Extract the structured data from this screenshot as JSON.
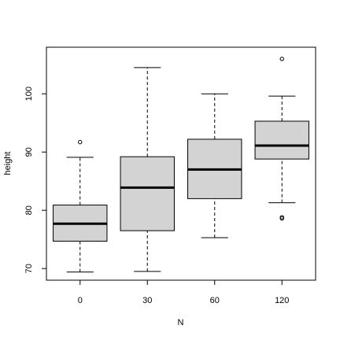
{
  "chart_data": {
    "type": "box",
    "xlabel": "N",
    "ylabel": "height",
    "ylim": [
      68,
      108
    ],
    "yticks": [
      70,
      80,
      90,
      100
    ],
    "categories": [
      "0",
      "30",
      "60",
      "120"
    ],
    "boxes": [
      {
        "category": "0",
        "whisker_low": 69.4,
        "q1": 74.7,
        "median": 77.7,
        "q3": 80.9,
        "whisker_high": 89.1,
        "outliers": [
          91.7
        ]
      },
      {
        "category": "30",
        "whisker_low": 69.5,
        "q1": 76.5,
        "median": 83.9,
        "q3": 89.2,
        "whisker_high": 104.5,
        "outliers": []
      },
      {
        "category": "60",
        "whisker_low": 75.3,
        "q1": 82.0,
        "median": 87.0,
        "q3": 92.2,
        "whisker_high": 100.0,
        "outliers": []
      },
      {
        "category": "120",
        "whisker_low": 81.3,
        "q1": 88.8,
        "median": 91.1,
        "q3": 95.3,
        "whisker_high": 99.6,
        "outliers": [
          106.0,
          78.8,
          78.6
        ]
      }
    ],
    "box_fill": "#d3d3d3",
    "grid": false
  }
}
